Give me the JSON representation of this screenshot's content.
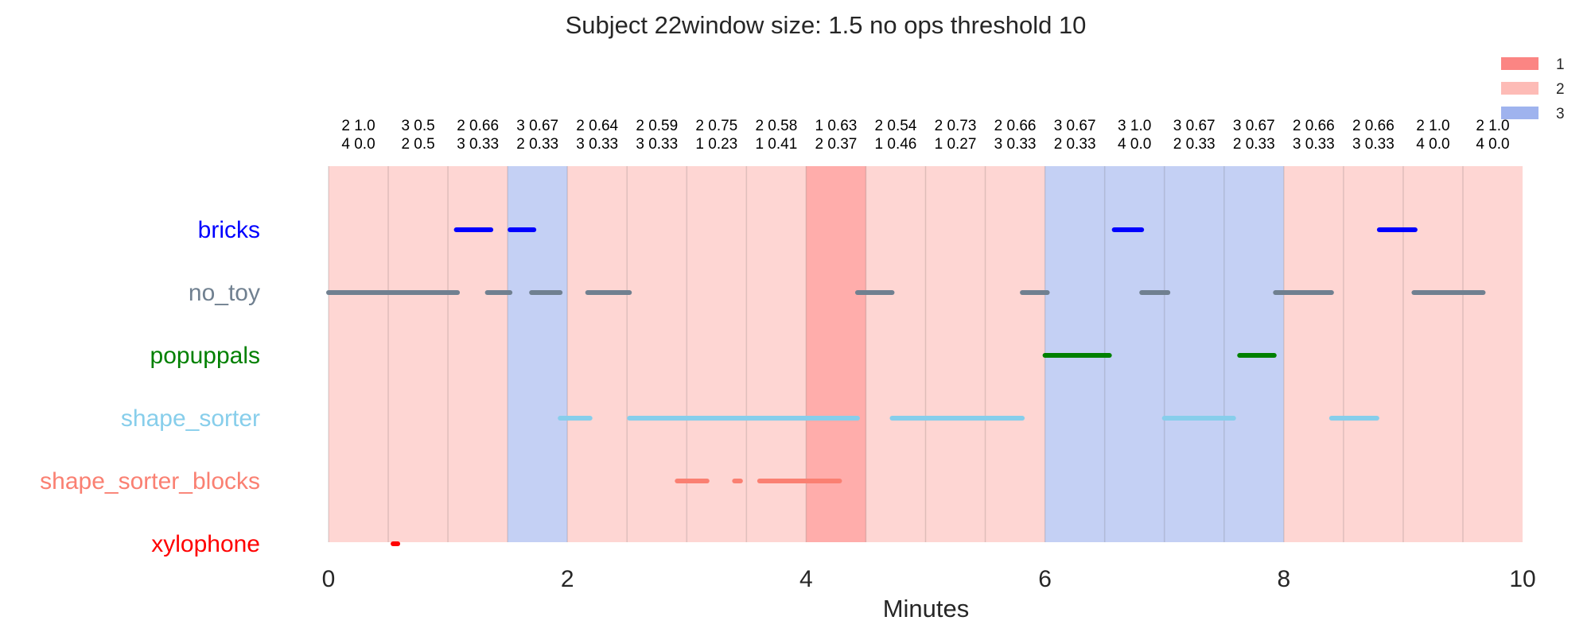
{
  "chart_data": {
    "type": "timeline",
    "title": "Subject 22window size: 1.5 no ops threshold 10",
    "xlabel": "Minutes",
    "xlim": [
      0,
      10
    ],
    "xticks": [
      "0",
      "2",
      "4",
      "6",
      "8",
      "10"
    ],
    "legend": {
      "placement": "top-right",
      "entries": [
        {
          "label": "1",
          "color": "#fb8583"
        },
        {
          "label": "2",
          "color": "#fdbbb6"
        },
        {
          "label": "3",
          "color": "#9fb3ee"
        }
      ]
    },
    "window_colors": {
      "1": "#ffadab",
      "2": "#fed6d3",
      "3": "#c4d0f4"
    },
    "windows": [
      {
        "start": 0.0,
        "end": 0.5,
        "state": "2",
        "line1": "2 1.0",
        "line2": "4 0.0"
      },
      {
        "start": 0.5,
        "end": 1.0,
        "state": "2",
        "line1": "3 0.5",
        "line2": "2 0.5"
      },
      {
        "start": 1.0,
        "end": 1.5,
        "state": "2",
        "line1": "2 0.66",
        "line2": "3 0.33"
      },
      {
        "start": 1.5,
        "end": 2.0,
        "state": "3",
        "line1": "3 0.67",
        "line2": "2 0.33"
      },
      {
        "start": 2.0,
        "end": 2.5,
        "state": "2",
        "line1": "2 0.64",
        "line2": "3 0.33"
      },
      {
        "start": 2.5,
        "end": 3.0,
        "state": "2",
        "line1": "2 0.59",
        "line2": "3 0.33"
      },
      {
        "start": 3.0,
        "end": 3.5,
        "state": "2",
        "line1": "2 0.75",
        "line2": "1 0.23"
      },
      {
        "start": 3.5,
        "end": 4.0,
        "state": "2",
        "line1": "2 0.58",
        "line2": "1 0.41"
      },
      {
        "start": 4.0,
        "end": 4.5,
        "state": "1",
        "line1": "1 0.63",
        "line2": "2 0.37"
      },
      {
        "start": 4.5,
        "end": 5.0,
        "state": "2",
        "line1": "2 0.54",
        "line2": "1 0.46"
      },
      {
        "start": 5.0,
        "end": 5.5,
        "state": "2",
        "line1": "2 0.73",
        "line2": "1 0.27"
      },
      {
        "start": 5.5,
        "end": 6.0,
        "state": "2",
        "line1": "2 0.66",
        "line2": "3 0.33"
      },
      {
        "start": 6.0,
        "end": 6.5,
        "state": "3",
        "line1": "3 0.67",
        "line2": "2 0.33"
      },
      {
        "start": 6.5,
        "end": 7.0,
        "state": "3",
        "line1": "3 1.0",
        "line2": "4 0.0"
      },
      {
        "start": 7.0,
        "end": 7.5,
        "state": "3",
        "line1": "3 0.67",
        "line2": "2 0.33"
      },
      {
        "start": 7.5,
        "end": 8.0,
        "state": "3",
        "line1": "3 0.67",
        "line2": "2 0.33"
      },
      {
        "start": 8.0,
        "end": 8.5,
        "state": "2",
        "line1": "2 0.66",
        "line2": "3 0.33"
      },
      {
        "start": 8.5,
        "end": 9.0,
        "state": "2",
        "line1": "2 0.66",
        "line2": "3 0.33"
      },
      {
        "start": 9.0,
        "end": 9.5,
        "state": "2",
        "line1": "2 1.0",
        "line2": "4 0.0"
      },
      {
        "start": 9.5,
        "end": 10.0,
        "state": "2",
        "line1": "2 1.0",
        "line2": "4 0.0"
      }
    ],
    "series": [
      {
        "name": "bricks",
        "color": "#0000ff",
        "segments": [
          [
            1.07,
            1.36
          ],
          [
            1.52,
            1.72
          ],
          [
            6.58,
            6.81
          ],
          [
            8.8,
            9.1
          ]
        ]
      },
      {
        "name": "no_toy",
        "color": "#708090",
        "segments": [
          [
            0.0,
            1.08
          ],
          [
            1.33,
            1.52
          ],
          [
            1.7,
            1.94
          ],
          [
            2.17,
            2.52
          ],
          [
            4.43,
            4.72
          ],
          [
            5.81,
            6.02
          ],
          [
            6.81,
            7.03
          ],
          [
            7.93,
            8.4
          ],
          [
            9.09,
            9.67
          ]
        ]
      },
      {
        "name": "popuppals",
        "color": "#008000",
        "segments": [
          [
            6.0,
            6.54
          ],
          [
            7.63,
            7.92
          ]
        ]
      },
      {
        "name": "shape_sorter",
        "color": "#87ceeb",
        "segments": [
          [
            1.94,
            2.19
          ],
          [
            2.52,
            4.43
          ],
          [
            4.72,
            5.81
          ],
          [
            7.0,
            7.58
          ],
          [
            8.4,
            8.78
          ]
        ]
      },
      {
        "name": "shape_sorter_blocks",
        "color": "#fa8072",
        "segments": [
          [
            2.92,
            3.17
          ],
          [
            3.4,
            3.45
          ],
          [
            3.61,
            4.28
          ]
        ]
      },
      {
        "name": "xylophone",
        "color": "#ff0000",
        "segments": [
          [
            0.54,
            0.58
          ]
        ]
      }
    ]
  }
}
